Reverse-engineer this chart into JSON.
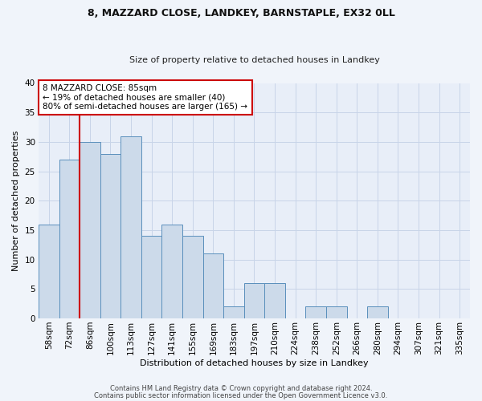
{
  "title1": "8, MAZZARD CLOSE, LANDKEY, BARNSTAPLE, EX32 0LL",
  "title2": "Size of property relative to detached houses in Landkey",
  "xlabel": "Distribution of detached houses by size in Landkey",
  "ylabel": "Number of detached properties",
  "categories": [
    "58sqm",
    "72sqm",
    "86sqm",
    "100sqm",
    "113sqm",
    "127sqm",
    "141sqm",
    "155sqm",
    "169sqm",
    "183sqm",
    "197sqm",
    "210sqm",
    "224sqm",
    "238sqm",
    "252sqm",
    "266sqm",
    "280sqm",
    "294sqm",
    "307sqm",
    "321sqm",
    "335sqm"
  ],
  "values": [
    16,
    27,
    30,
    28,
    31,
    14,
    16,
    14,
    11,
    2,
    6,
    6,
    0,
    2,
    2,
    0,
    2,
    0,
    0,
    0,
    0
  ],
  "bar_color": "#ccdaea",
  "bar_edge_color": "#5a8fbc",
  "red_line_color": "#cc0000",
  "annotation_title": "8 MAZZARD CLOSE: 85sqm",
  "annotation_line1": "← 19% of detached houses are smaller (40)",
  "annotation_line2": "80% of semi-detached houses are larger (165) →",
  "annotation_box_facecolor": "#ffffff",
  "annotation_box_edgecolor": "#cc0000",
  "ylim": [
    0,
    40
  ],
  "yticks": [
    0,
    5,
    10,
    15,
    20,
    25,
    30,
    35,
    40
  ],
  "footer1": "Contains HM Land Registry data © Crown copyright and database right 2024.",
  "footer2": "Contains public sector information licensed under the Open Government Licence v3.0.",
  "bg_color": "#f0f4fa",
  "plot_bg_color": "#e8eef8",
  "grid_color": "#c8d4e8",
  "title1_fontsize": 9.0,
  "title2_fontsize": 8.0,
  "xlabel_fontsize": 8.0,
  "ylabel_fontsize": 8.0,
  "tick_fontsize": 7.5,
  "footer_fontsize": 6.0,
  "ann_fontsize": 7.5
}
